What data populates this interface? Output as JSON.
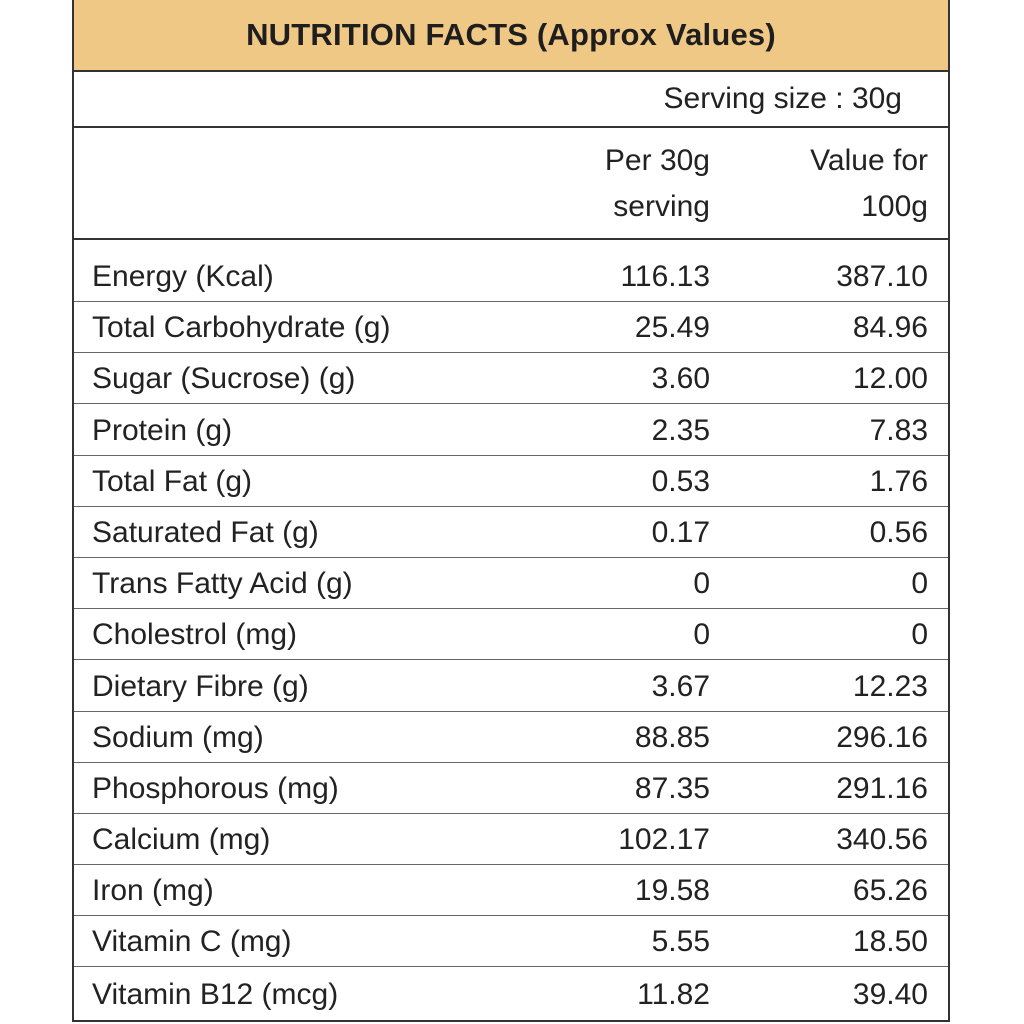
{
  "title": "NUTRITION FACTS (Approx Values)",
  "serving_size": "Serving size : 30g",
  "columns": {
    "per_serving_line1": "Per 30g",
    "per_serving_line2": "serving",
    "per_100_line1": "Value for",
    "per_100_line2": "100g"
  },
  "rows": [
    {
      "name": "Energy (Kcal)",
      "per": "116.13",
      "val": "387.10"
    },
    {
      "name": "Total Carbohydrate (g)",
      "per": "25.49",
      "val": "84.96"
    },
    {
      "name": "Sugar (Sucrose) (g)",
      "per": "3.60",
      "val": "12.00"
    },
    {
      "name": "Protein (g)",
      "per": "2.35",
      "val": "7.83"
    },
    {
      "name": "Total Fat (g)",
      "per": "0.53",
      "val": "1.76"
    },
    {
      "name": "Saturated Fat (g)",
      "per": "0.17",
      "val": "0.56"
    },
    {
      "name": "Trans Fatty Acid (g)",
      "per": "0",
      "val": "0"
    },
    {
      "name": "Cholestrol (mg)",
      "per": "0",
      "val": "0"
    },
    {
      "name": "Dietary Fibre (g)",
      "per": "3.67",
      "val": "12.23"
    },
    {
      "name": "Sodium (mg)",
      "per": "88.85",
      "val": "296.16"
    },
    {
      "name": "Phosphorous (mg)",
      "per": "87.35",
      "val": "291.16"
    },
    {
      "name": "Calcium (mg)",
      "per": "102.17",
      "val": "340.56"
    },
    {
      "name": "Iron (mg)",
      "per": "19.58",
      "val": "65.26"
    },
    {
      "name": "Vitamin C (mg)",
      "per": "5.55",
      "val": "18.50"
    },
    {
      "name": "Vitamin B12 (mcg)",
      "per": "11.82",
      "val": "39.40"
    }
  ],
  "colors": {
    "header_background": "#efc885",
    "border": "#333333"
  }
}
